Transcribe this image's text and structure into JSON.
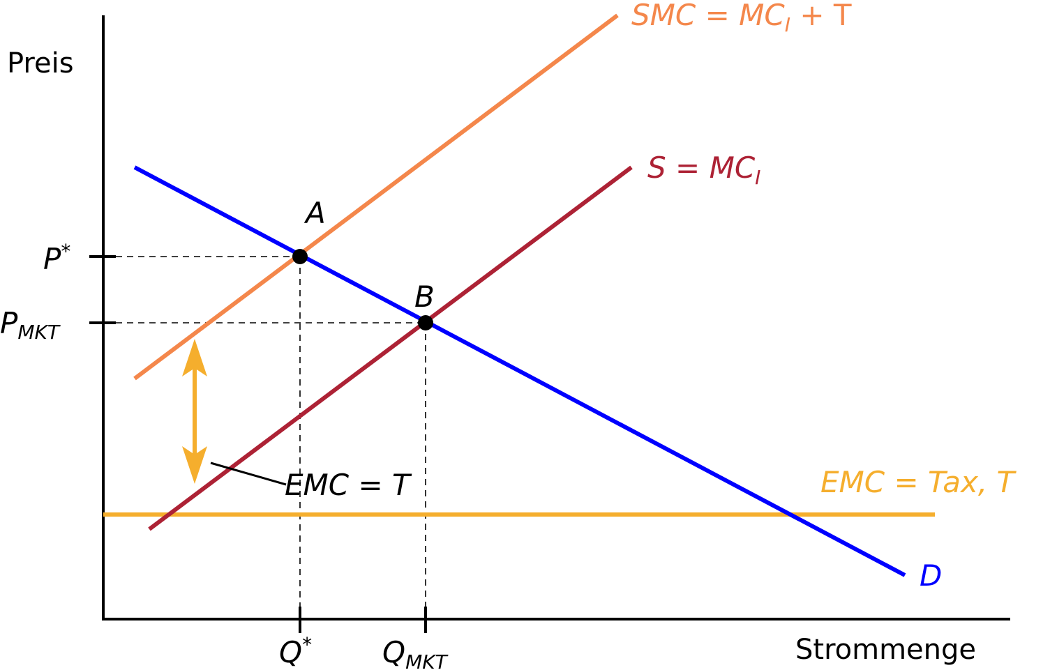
{
  "axes": {
    "y_label": "Preis",
    "x_label": "Strommenge"
  },
  "colors": {
    "smc": "#f4874b",
    "supply": "#ad2235",
    "demand": "#0000ff",
    "emc": "#f5ae2d",
    "axis": "#000000"
  },
  "curves": {
    "smc": {
      "lhs": "SMC",
      "eq": " = ",
      "rhs_main": "MC",
      "rhs_sub": "I",
      "rhs_tail": " + T"
    },
    "supply": {
      "lhs": "S",
      "eq": " = ",
      "rhs_main": "MC",
      "rhs_sub": "I"
    },
    "demand": {
      "label": "D"
    },
    "emc_line": {
      "lhs": "EMC",
      "eq": " = ",
      "rhs": "Tax, T"
    }
  },
  "points": {
    "a": "A",
    "b": "B"
  },
  "prices": {
    "p_star": {
      "main": "P",
      "sup": "*"
    },
    "p_mkt": {
      "main": "P",
      "sub": "MKT"
    }
  },
  "quantities": {
    "q_star": {
      "main": "Q",
      "sup": "*"
    },
    "q_mkt": {
      "main": "Q",
      "sub": "MKT"
    }
  },
  "annotation": {
    "lhs": "EMC",
    "eq": " = ",
    "rhs": "T"
  }
}
